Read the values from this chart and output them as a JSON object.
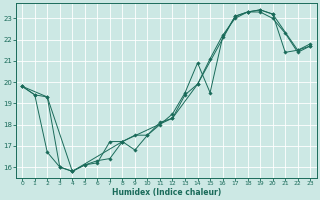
{
  "xlabel": "Humidex (Indice chaleur)",
  "bg_color": "#cce8e4",
  "line_color": "#1a6b5a",
  "grid_color": "#ffffff",
  "xlim": [
    -0.5,
    23.5
  ],
  "ylim": [
    15.5,
    23.7
  ],
  "yticks": [
    16,
    17,
    18,
    19,
    20,
    21,
    22,
    23
  ],
  "xticks": [
    0,
    1,
    2,
    3,
    4,
    5,
    6,
    7,
    8,
    9,
    10,
    11,
    12,
    13,
    14,
    15,
    16,
    17,
    18,
    19,
    20,
    21,
    22,
    23
  ],
  "line1_x": [
    0,
    1,
    2,
    3,
    4,
    5,
    6,
    7,
    8,
    9,
    10,
    11,
    12,
    13,
    14,
    15,
    16,
    17,
    18,
    19,
    20,
    21,
    22,
    23
  ],
  "line1_y": [
    19.8,
    19.4,
    16.7,
    16.0,
    15.8,
    16.1,
    16.2,
    17.2,
    17.2,
    16.8,
    17.5,
    18.1,
    18.3,
    19.4,
    19.9,
    21.1,
    22.2,
    23.0,
    23.3,
    23.3,
    23.0,
    22.3,
    21.4,
    21.7
  ],
  "line2_x": [
    0,
    1,
    2,
    3,
    4,
    5,
    6,
    7,
    8,
    9,
    10,
    11,
    12,
    13,
    14,
    15,
    16,
    17,
    18,
    19,
    20,
    21,
    22,
    23
  ],
  "line2_y": [
    19.8,
    19.4,
    19.3,
    16.0,
    15.8,
    16.1,
    16.3,
    16.4,
    17.2,
    17.5,
    17.5,
    18.0,
    18.5,
    19.5,
    20.9,
    19.5,
    22.1,
    23.1,
    23.3,
    23.4,
    23.2,
    21.4,
    21.5,
    21.8
  ],
  "line3_x": [
    0,
    2,
    4,
    8,
    12,
    14,
    17,
    18,
    19,
    20,
    22,
    23
  ],
  "line3_y": [
    19.8,
    19.3,
    15.8,
    17.2,
    18.3,
    19.9,
    23.1,
    23.3,
    23.4,
    23.2,
    21.5,
    21.7
  ]
}
